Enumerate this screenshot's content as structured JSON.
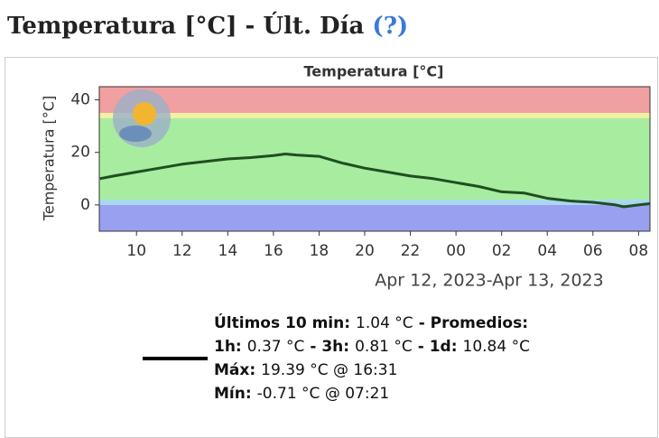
{
  "header": {
    "title": "Temperatura [°C] - Últ. Día",
    "help": "(?)"
  },
  "chart_data": {
    "type": "line",
    "title": "Temperatura [°C]",
    "y_label": "Temperatura [°C]",
    "x_label": "Apr 12, 2023-Apr 13, 2023",
    "x": [
      8.4,
      9,
      10,
      11,
      12,
      13,
      14,
      15,
      16,
      16.52,
      17,
      18,
      19,
      20,
      21,
      22,
      23,
      24,
      25,
      26,
      27,
      28,
      29,
      30,
      31,
      31.35,
      32,
      32.5
    ],
    "values": [
      10,
      11,
      12.5,
      14,
      15.5,
      16.5,
      17.5,
      18,
      18.8,
      19.39,
      19,
      18.5,
      16,
      14,
      12.5,
      11,
      10,
      8.5,
      7,
      5,
      4.5,
      2.5,
      1.5,
      1,
      0,
      -0.71,
      0,
      0.5
    ],
    "color": "#1f4f1f",
    "xlim": [
      8.37,
      32.5
    ],
    "xticks": [
      10,
      12,
      14,
      16,
      18,
      20,
      22,
      {
        "value": 24,
        "label": "00"
      },
      {
        "value": 26,
        "label": "02"
      },
      {
        "value": 28,
        "label": "04"
      },
      {
        "value": 30,
        "label": "06"
      },
      {
        "value": 32,
        "label": "08"
      }
    ],
    "ylim": [
      -10,
      45
    ],
    "yticks": [
      0,
      20,
      40
    ],
    "bands": [
      {
        "from": 35,
        "to": 45,
        "color": "#f0a0a0"
      },
      {
        "from": 33,
        "to": 35,
        "color": "#f4f0a0"
      },
      {
        "from": 2,
        "to": 33,
        "color": "#a8eca0"
      },
      {
        "from": 0,
        "to": 2,
        "color": "#a8d8f0"
      },
      {
        "from": -10,
        "to": 0,
        "color": "#9aa0f0"
      }
    ]
  },
  "summary": {
    "lines": [
      [
        {
          "text": "Últimos 10 min:",
          "bold": true
        },
        {
          "text": "1.04 °C",
          "bold": false
        },
        {
          "text": "- Promedios:",
          "bold": true
        }
      ],
      [
        {
          "text": "1h:",
          "bold": true
        },
        {
          "text": "0.37 °C",
          "bold": false
        },
        {
          "text": "- 3h:",
          "bold": true
        },
        {
          "text": "0.81 °C",
          "bold": false
        },
        {
          "text": "- 1d:",
          "bold": true
        },
        {
          "text": "10.84 °C",
          "bold": false
        }
      ],
      [
        {
          "text": "Máx:",
          "bold": true
        },
        {
          "text": "19.39 °C @ 16:31",
          "bold": false
        }
      ],
      [
        {
          "text": "Mín:",
          "bold": true
        },
        {
          "text": "-0.71 °C @ 07:21",
          "bold": false
        }
      ]
    ]
  }
}
